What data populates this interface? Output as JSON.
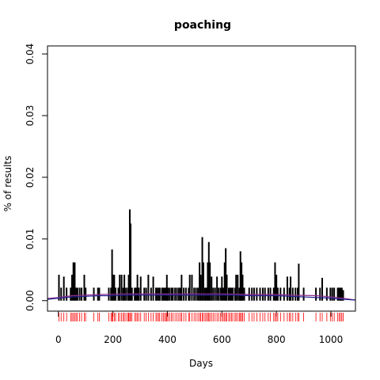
{
  "chart_data": {
    "type": "bar",
    "title": "poaching",
    "xlabel": "Days",
    "ylabel": "% of results",
    "xlim": [
      -40,
      1090
    ],
    "ylim": [
      -0.0017,
      0.0413
    ],
    "x_ticks": [
      0,
      200,
      400,
      600,
      800,
      1000
    ],
    "y_ticks": [
      0.0,
      0.01,
      0.02,
      0.03,
      0.04
    ],
    "y_tick_labels": [
      "0.00",
      "0.01",
      "0.02",
      "0.03",
      "0.04"
    ],
    "series": [
      {
        "style": "vertical-spikes",
        "color": "#000000",
        "points": [
          [
            2,
            0.0042
          ],
          [
            10,
            0.0021
          ],
          [
            20,
            0.0039
          ],
          [
            30,
            0.0021
          ],
          [
            45,
            0.0021
          ],
          [
            50,
            0.0042
          ],
          [
            55,
            0.0062
          ],
          [
            60,
            0.0062
          ],
          [
            65,
            0.0021
          ],
          [
            70,
            0.0021
          ],
          [
            78,
            0.0021
          ],
          [
            85,
            0.0021
          ],
          [
            95,
            0.0042
          ],
          [
            100,
            0.0021
          ],
          [
            130,
            0.0021
          ],
          [
            145,
            0.0021
          ],
          [
            150,
            0.0021
          ],
          [
            185,
            0.0021
          ],
          [
            193,
            0.0021
          ],
          [
            197,
            0.0083
          ],
          [
            200,
            0.0042
          ],
          [
            205,
            0.0042
          ],
          [
            210,
            0.0021
          ],
          [
            220,
            0.0021
          ],
          [
            225,
            0.0042
          ],
          [
            232,
            0.0042
          ],
          [
            238,
            0.0021
          ],
          [
            242,
            0.0042
          ],
          [
            248,
            0.0021
          ],
          [
            255,
            0.0021
          ],
          [
            258,
            0.0042
          ],
          [
            262,
            0.0148
          ],
          [
            265,
            0.0125
          ],
          [
            270,
            0.0021
          ],
          [
            280,
            0.0021
          ],
          [
            285,
            0.0021
          ],
          [
            290,
            0.0042
          ],
          [
            295,
            0.0021
          ],
          [
            302,
            0.0039
          ],
          [
            315,
            0.0021
          ],
          [
            322,
            0.0021
          ],
          [
            330,
            0.0042
          ],
          [
            340,
            0.0021
          ],
          [
            348,
            0.0039
          ],
          [
            358,
            0.0021
          ],
          [
            362,
            0.0021
          ],
          [
            368,
            0.0021
          ],
          [
            372,
            0.0021
          ],
          [
            380,
            0.0021
          ],
          [
            385,
            0.0021
          ],
          [
            390,
            0.0021
          ],
          [
            395,
            0.0021
          ],
          [
            398,
            0.0042
          ],
          [
            402,
            0.0021
          ],
          [
            408,
            0.0021
          ],
          [
            415,
            0.0021
          ],
          [
            420,
            0.0021
          ],
          [
            428,
            0.0021
          ],
          [
            435,
            0.0021
          ],
          [
            442,
            0.0021
          ],
          [
            448,
            0.0021
          ],
          [
            452,
            0.0042
          ],
          [
            460,
            0.0021
          ],
          [
            468,
            0.0021
          ],
          [
            478,
            0.0021
          ],
          [
            482,
            0.0042
          ],
          [
            490,
            0.0042
          ],
          [
            498,
            0.0021
          ],
          [
            505,
            0.0021
          ],
          [
            512,
            0.0021
          ],
          [
            518,
            0.0062
          ],
          [
            522,
            0.0042
          ],
          [
            528,
            0.0103
          ],
          [
            532,
            0.0062
          ],
          [
            538,
            0.0021
          ],
          [
            543,
            0.0021
          ],
          [
            548,
            0.0062
          ],
          [
            552,
            0.0095
          ],
          [
            556,
            0.0062
          ],
          [
            562,
            0.0039
          ],
          [
            568,
            0.0021
          ],
          [
            575,
            0.0021
          ],
          [
            582,
            0.0039
          ],
          [
            588,
            0.0021
          ],
          [
            595,
            0.0021
          ],
          [
            600,
            0.0039
          ],
          [
            605,
            0.0021
          ],
          [
            610,
            0.0062
          ],
          [
            614,
            0.0085
          ],
          [
            618,
            0.0042
          ],
          [
            625,
            0.0021
          ],
          [
            630,
            0.0021
          ],
          [
            635,
            0.0021
          ],
          [
            640,
            0.0021
          ],
          [
            648,
            0.0021
          ],
          [
            652,
            0.0042
          ],
          [
            658,
            0.0042
          ],
          [
            664,
            0.0021
          ],
          [
            668,
            0.008
          ],
          [
            672,
            0.0062
          ],
          [
            676,
            0.0042
          ],
          [
            682,
            0.0021
          ],
          [
            700,
            0.0021
          ],
          [
            710,
            0.0021
          ],
          [
            718,
            0.0021
          ],
          [
            728,
            0.0021
          ],
          [
            740,
            0.0021
          ],
          [
            750,
            0.0021
          ],
          [
            758,
            0.0021
          ],
          [
            770,
            0.0021
          ],
          [
            778,
            0.0021
          ],
          [
            790,
            0.0021
          ],
          [
            795,
            0.0062
          ],
          [
            800,
            0.0042
          ],
          [
            805,
            0.0021
          ],
          [
            815,
            0.0021
          ],
          [
            828,
            0.0021
          ],
          [
            840,
            0.0039
          ],
          [
            848,
            0.0021
          ],
          [
            852,
            0.0039
          ],
          [
            860,
            0.0021
          ],
          [
            870,
            0.0021
          ],
          [
            878,
            0.0021
          ],
          [
            882,
            0.006
          ],
          [
            900,
            0.0021
          ],
          [
            945,
            0.0021
          ],
          [
            960,
            0.0021
          ],
          [
            968,
            0.0037
          ],
          [
            985,
            0.0021
          ],
          [
            998,
            0.0021
          ],
          [
            1005,
            0.0021
          ],
          [
            1012,
            0.0021
          ],
          [
            1025,
            0.0021
          ],
          [
            1030,
            0.0021
          ],
          [
            1035,
            0.0021
          ],
          [
            1040,
            0.0021
          ],
          [
            1045,
            0.0017
          ]
        ]
      },
      {
        "style": "smooth-line",
        "color": "#8b2e8b",
        "points": [
          [
            -40,
            0.00035
          ],
          [
            0,
            0.0005
          ],
          [
            50,
            0.0008
          ],
          [
            100,
            0.0009
          ],
          [
            150,
            0.001
          ],
          [
            200,
            0.00105
          ],
          [
            250,
            0.0011
          ],
          [
            300,
            0.0011
          ],
          [
            350,
            0.0011
          ],
          [
            400,
            0.00108
          ],
          [
            450,
            0.0011
          ],
          [
            500,
            0.0011
          ],
          [
            550,
            0.0011
          ],
          [
            600,
            0.0011
          ],
          [
            650,
            0.00105
          ],
          [
            700,
            0.001
          ],
          [
            750,
            0.001
          ],
          [
            800,
            0.001
          ],
          [
            850,
            0.0009
          ],
          [
            900,
            0.00085
          ],
          [
            950,
            0.0008
          ],
          [
            1000,
            0.0006
          ],
          [
            1050,
            0.00035
          ],
          [
            1090,
            0.0001
          ]
        ]
      },
      {
        "style": "smooth-line",
        "color": "#1f1f8f",
        "points": [
          [
            -40,
            0.0002
          ],
          [
            0,
            0.0004
          ],
          [
            50,
            0.0006
          ],
          [
            100,
            0.0007
          ],
          [
            150,
            0.0008
          ],
          [
            200,
            0.0008
          ],
          [
            250,
            0.0009
          ],
          [
            300,
            0.0009
          ],
          [
            350,
            0.0009
          ],
          [
            400,
            0.0009
          ],
          [
            450,
            0.0009
          ],
          [
            500,
            0.0009
          ],
          [
            550,
            0.0009
          ],
          [
            600,
            0.0009
          ],
          [
            650,
            0.0009
          ],
          [
            700,
            0.0008
          ],
          [
            750,
            0.0008
          ],
          [
            800,
            0.0008
          ],
          [
            850,
            0.0007
          ],
          [
            900,
            0.0006
          ],
          [
            950,
            0.0005
          ],
          [
            1000,
            0.0004
          ],
          [
            1050,
            0.0002
          ],
          [
            1090,
            0.0001
          ]
        ]
      }
    ],
    "rug": {
      "color": "#ff0000",
      "x": [
        2,
        10,
        20,
        30,
        45,
        50,
        55,
        60,
        65,
        70,
        78,
        85,
        95,
        100,
        130,
        145,
        150,
        185,
        193,
        197,
        200,
        205,
        210,
        220,
        225,
        232,
        238,
        242,
        248,
        255,
        258,
        262,
        265,
        270,
        280,
        285,
        290,
        295,
        302,
        315,
        322,
        330,
        340,
        348,
        358,
        362,
        368,
        372,
        380,
        385,
        390,
        395,
        398,
        402,
        408,
        415,
        420,
        428,
        435,
        442,
        448,
        452,
        460,
        468,
        478,
        482,
        490,
        498,
        505,
        512,
        518,
        522,
        528,
        532,
        538,
        543,
        548,
        552,
        556,
        562,
        568,
        575,
        582,
        588,
        595,
        600,
        605,
        610,
        614,
        618,
        625,
        630,
        635,
        640,
        648,
        652,
        658,
        664,
        668,
        672,
        676,
        682,
        700,
        710,
        718,
        728,
        740,
        750,
        758,
        770,
        778,
        790,
        795,
        800,
        805,
        815,
        828,
        840,
        848,
        852,
        860,
        870,
        878,
        882,
        900,
        945,
        960,
        968,
        985,
        998,
        1005,
        1012,
        1025,
        1030,
        1035,
        1040,
        1045
      ]
    }
  }
}
